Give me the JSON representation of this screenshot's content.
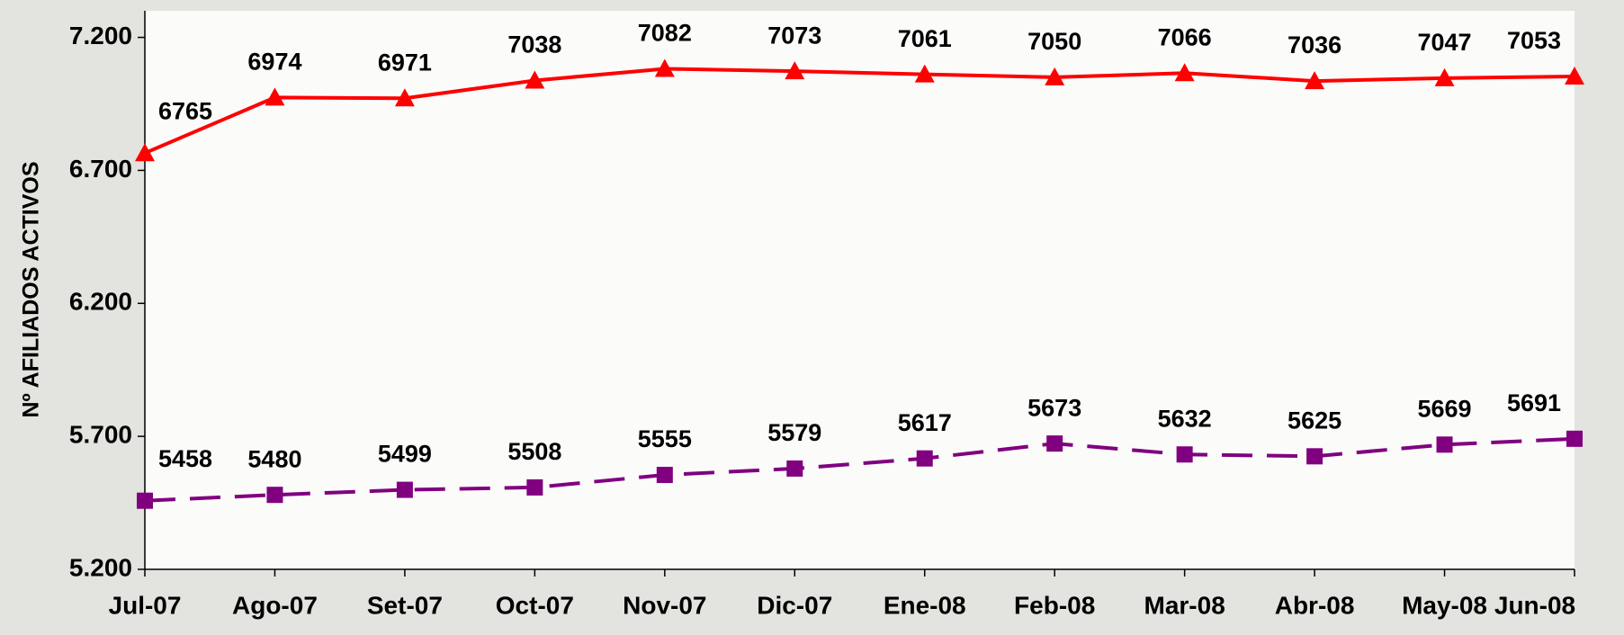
{
  "chart_data": {
    "type": "line",
    "y_label": "Nº AFILIADOS ACTIVOS",
    "categories": [
      "Jul-07",
      "Ago-07",
      "Set-07",
      "Oct-07",
      "Nov-07",
      "Dic-07",
      "Ene-08",
      "Feb-08",
      "Mar-08",
      "Abr-08",
      "May-08",
      "Jun-08"
    ],
    "series": [
      {
        "color": "#ff0000",
        "marker": "triangle",
        "dashed": false,
        "values": [
          6765,
          6974,
          6971,
          7038,
          7082,
          7073,
          7061,
          7050,
          7066,
          7036,
          7047,
          7053
        ]
      },
      {
        "color": "#800080",
        "marker": "square",
        "dashed": true,
        "values": [
          5458,
          5480,
          5499,
          5508,
          5555,
          5579,
          5617,
          5673,
          5632,
          5625,
          5669,
          5691
        ]
      }
    ],
    "ylim": [
      5200,
      7300
    ],
    "yticks": [
      {
        "value": 5200,
        "label": "5.200"
      },
      {
        "value": 5700,
        "label": "5.700"
      },
      {
        "value": 6200,
        "label": "6.200"
      },
      {
        "value": 6700,
        "label": "6.700"
      },
      {
        "value": 7200,
        "label": "7.200"
      }
    ],
    "grid": false
  }
}
